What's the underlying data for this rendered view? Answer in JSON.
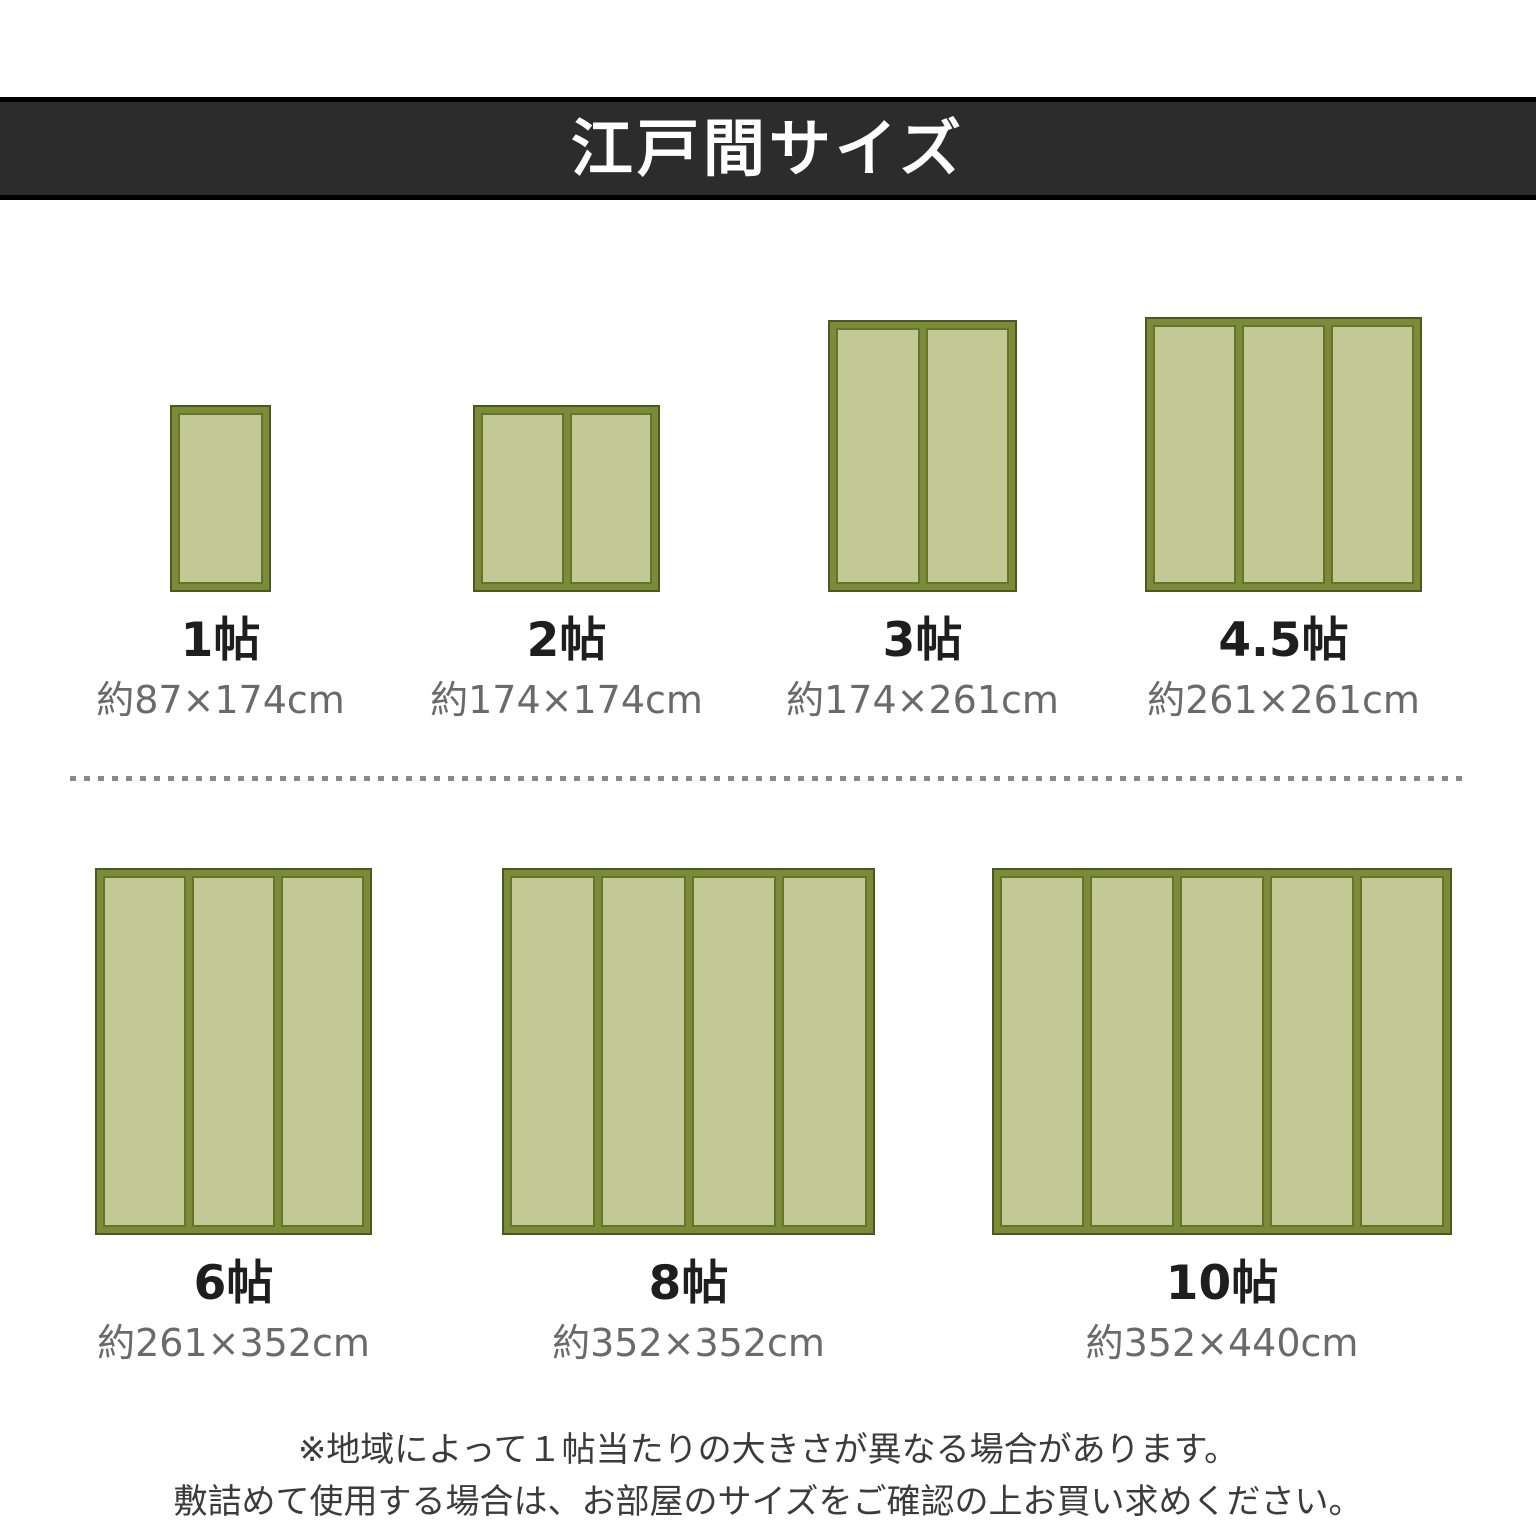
{
  "page": {
    "title": "江戸間サイズ",
    "note_line1": "※地域によって１帖当たりの大きさが異なる場合があります。",
    "note_line2": "敷詰めて使用する場合は、お部屋のサイズをご確認の上お買い求めください。"
  },
  "colors": {
    "header_bg": "#2c2c2c",
    "header_text": "#ffffff",
    "mat_frame": "#7b8b39",
    "mat_outline": "#4d581d",
    "panel_fill": "#c3c994",
    "panel_border": "#66742a",
    "label_text": "#1e1e1e",
    "dimension_text": "#6a6a6a",
    "note_text": "#3b3b3b",
    "divider_dash": "#8a8a8a"
  },
  "sizes": [
    {
      "label": "1帖",
      "dimensions": "約87×174cm",
      "panels": 1
    },
    {
      "label": "2帖",
      "dimensions": "約174×174cm",
      "panels": 2
    },
    {
      "label": "3帖",
      "dimensions": "約174×261cm",
      "panels": 2
    },
    {
      "label": "4.5帖",
      "dimensions": "約261×261cm",
      "panels": 3
    },
    {
      "label": "6帖",
      "dimensions": "約261×352cm",
      "panels": 3
    },
    {
      "label": "8帖",
      "dimensions": "約352×352cm",
      "panels": 4
    },
    {
      "label": "10帖",
      "dimensions": "約352×440cm",
      "panels": 5
    }
  ]
}
